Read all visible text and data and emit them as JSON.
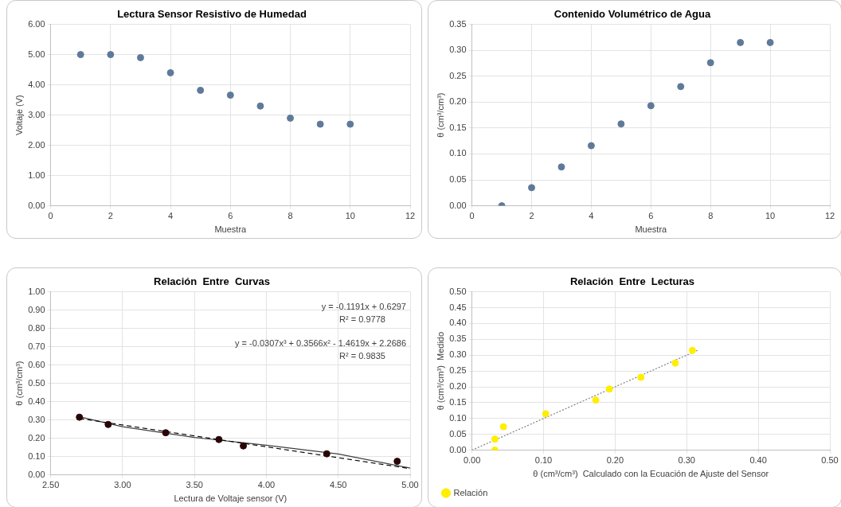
{
  "chart_data": [
    {
      "type": "scatter",
      "title": "Lectura Sensor Resistivo de Humedad",
      "xlabel": "Muestra",
      "ylabel": "Voltaje (V)",
      "x": [
        1,
        2,
        3,
        4,
        5,
        6,
        7,
        8,
        9,
        10
      ],
      "marker": "circle",
      "grid": true,
      "legend": false,
      "series": [
        {
          "color": "#5f7a99",
          "values": [
            5.0,
            5.0,
            4.9,
            4.4,
            3.82,
            3.66,
            3.3,
            2.9,
            2.7,
            2.7
          ]
        }
      ],
      "xlim": [
        0,
        12
      ],
      "xticks": [
        0,
        2,
        4,
        6,
        8,
        10,
        12
      ],
      "ylim": [
        0,
        6
      ],
      "yticks": [
        {
          "value": 0,
          "label": "0.00"
        },
        {
          "value": 1,
          "label": "1.00"
        },
        {
          "value": 2,
          "label": "2.00"
        },
        {
          "value": 3,
          "label": "3.00"
        },
        {
          "value": 4,
          "label": "4.00"
        },
        {
          "value": 5,
          "label": "5.00"
        },
        {
          "value": 6,
          "label": "6.00"
        }
      ]
    },
    {
      "type": "scatter",
      "title": "Contenido Volumétrico de Agua",
      "xlabel": "Muestra",
      "ylabel": "θ (cm³/cm³)",
      "x": [
        1,
        2,
        3,
        4,
        5,
        6,
        7,
        8,
        9,
        10
      ],
      "marker": "circle",
      "grid": true,
      "legend": false,
      "series": [
        {
          "color": "#5f7a99",
          "values": [
            0.0,
            0.035,
            0.075,
            0.116,
            0.158,
            0.193,
            0.23,
            0.276,
            0.315,
            0.315
          ]
        }
      ],
      "xlim": [
        0,
        12
      ],
      "xticks": [
        0,
        2,
        4,
        6,
        8,
        10,
        12
      ],
      "ylim": [
        0,
        0.35
      ],
      "yticks": [
        {
          "value": 0,
          "label": "0.00"
        },
        {
          "value": 0.05,
          "label": "0.05"
        },
        {
          "value": 0.1,
          "label": "0.10"
        },
        {
          "value": 0.15,
          "label": "0.15"
        },
        {
          "value": 0.2,
          "label": "0.20"
        },
        {
          "value": 0.25,
          "label": "0.25"
        },
        {
          "value": 0.3,
          "label": "0.30"
        },
        {
          "value": 0.35,
          "label": "0.35"
        }
      ]
    },
    {
      "type": "scatter",
      "title": "Relación  Entre  Curvas",
      "xlabel": "Lectura de Voltaje sensor (V)",
      "ylabel": "θ (cm³/cm³)",
      "marker": "circle",
      "grid": true,
      "legend": false,
      "series": [
        {
          "color": "#2a0505",
          "x": [
            2.7,
            2.9,
            3.3,
            3.67,
            3.84,
            4.42,
            4.91
          ],
          "values": [
            0.315,
            0.275,
            0.23,
            0.193,
            0.158,
            0.115,
            0.074
          ]
        },
        {
          "type": "line",
          "marker": "none",
          "line_style": "dashed",
          "color": "#000000",
          "x": [
            2.7,
            5.0
          ],
          "values": [
            0.308,
            0.034
          ]
        },
        {
          "type": "line",
          "marker": "none",
          "line_style": "solid",
          "color": "#404040",
          "x": [
            2.7,
            3.0,
            3.5,
            4.0,
            4.5,
            5.0
          ],
          "values": [
            0.317,
            0.263,
            0.204,
            0.162,
            0.114,
            0.037
          ]
        }
      ],
      "annotations": [
        "y = -0.1191x + 0.6297",
        "R² = 0.9778",
        "y = -0.0307x³ + 0.3566x² - 1.4619x + 2.2686",
        "R² = 0.9835"
      ],
      "xlim": [
        2.5,
        5.0
      ],
      "xticks": [
        {
          "value": 2.5,
          "label": "2.50"
        },
        {
          "value": 3,
          "label": "3.00"
        },
        {
          "value": 3.5,
          "label": "3.50"
        },
        {
          "value": 4,
          "label": "4.00"
        },
        {
          "value": 4.5,
          "label": "4.50"
        },
        {
          "value": 5,
          "label": "5.00"
        }
      ],
      "ylim": [
        0,
        1
      ],
      "yticks": [
        {
          "value": 0,
          "label": "0.00"
        },
        {
          "value": 0.1,
          "label": "0.10"
        },
        {
          "value": 0.2,
          "label": "0.20"
        },
        {
          "value": 0.3,
          "label": "0.30"
        },
        {
          "value": 0.4,
          "label": "0.40"
        },
        {
          "value": 0.5,
          "label": "0.50"
        },
        {
          "value": 0.6,
          "label": "0.60"
        },
        {
          "value": 0.7,
          "label": "0.70"
        },
        {
          "value": 0.8,
          "label": "0.80"
        },
        {
          "value": 0.9,
          "label": "0.90"
        },
        {
          "value": 1,
          "label": "1.00"
        }
      ]
    },
    {
      "type": "scatter",
      "title": "Relación  Entre  Lecturas",
      "xlabel": "θ (cm³/cm³)  Calculado con la Ecuación de Ajuste del Sensor",
      "ylabel": "θ (cm³/cm³)  Medido",
      "marker": "circle",
      "grid": true,
      "legend": "bottom left",
      "series": [
        {
          "name": "Relación",
          "color": "#ffee00",
          "x": [
            0.032,
            0.032,
            0.044,
            0.103,
            0.173,
            0.192,
            0.236,
            0.284,
            0.308
          ],
          "values": [
            0.0,
            0.035,
            0.074,
            0.115,
            0.158,
            0.193,
            0.23,
            0.275,
            0.315
          ]
        },
        {
          "type": "line",
          "marker": "none",
          "line_style": "dotted",
          "color": "#808080",
          "x": [
            0,
            0.315
          ],
          "values": [
            0,
            0.315
          ]
        }
      ],
      "xlim": [
        0,
        0.5
      ],
      "xticks": [
        {
          "value": 0,
          "label": "0.00"
        },
        {
          "value": 0.1,
          "label": "0.10"
        },
        {
          "value": 0.2,
          "label": "0.20"
        },
        {
          "value": 0.3,
          "label": "0.30"
        },
        {
          "value": 0.4,
          "label": "0.40"
        },
        {
          "value": 0.5,
          "label": "0.50"
        }
      ],
      "ylim": [
        0,
        0.5
      ],
      "yticks": [
        {
          "value": 0,
          "label": "0.00"
        },
        {
          "value": 0.05,
          "label": "0.05"
        },
        {
          "value": 0.1,
          "label": "0.10"
        },
        {
          "value": 0.15,
          "label": "0.15"
        },
        {
          "value": 0.2,
          "label": "0.20"
        },
        {
          "value": 0.25,
          "label": "0.25"
        },
        {
          "value": 0.3,
          "label": "0.30"
        },
        {
          "value": 0.35,
          "label": "0.35"
        },
        {
          "value": 0.4,
          "label": "0.40"
        },
        {
          "value": 0.45,
          "label": "0.45"
        },
        {
          "value": 0.5,
          "label": "0.50"
        }
      ]
    }
  ]
}
